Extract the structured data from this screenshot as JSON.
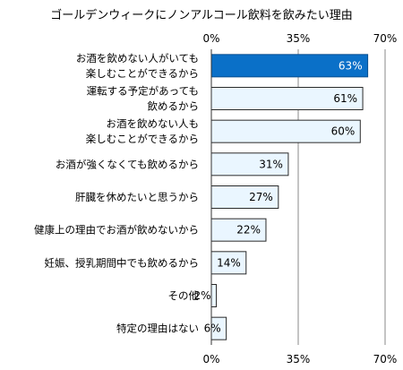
{
  "chart_data": {
    "type": "bar",
    "orientation": "horizontal",
    "title": "ゴールデンウィークにノンアルコール飲料を飲みたい理由",
    "categories": [
      [
        "お酒を飲めない人がいても",
        "楽しむことができるから"
      ],
      [
        "運転する予定があっても",
        "飲めるから"
      ],
      [
        "お酒を飲めない人も",
        "楽しむことができるから"
      ],
      [
        "お酒が強くなくても飲めるから"
      ],
      [
        "肝臓を休めたいと思うから"
      ],
      [
        "健康上の理由でお酒が飲めないから"
      ],
      [
        "妊娠、授乳期間中でも飲めるから"
      ],
      [
        "その他"
      ],
      [
        "特定の理由はない"
      ]
    ],
    "values": [
      63,
      61,
      60,
      31,
      27,
      22,
      14,
      2,
      6
    ],
    "value_labels": [
      "63%",
      "61%",
      "60%",
      "31%",
      "27%",
      "22%",
      "14%",
      "2%",
      "6%"
    ],
    "xlim": [
      0,
      70
    ],
    "ticks": [
      0,
      35,
      70
    ],
    "tick_labels": [
      "0%",
      "35%",
      "70%"
    ],
    "highlight_index": 0,
    "colors": {
      "highlight_fill": "#0a70c8",
      "highlight_stroke": "#0a4f8f",
      "bar_fill": "#eaf6ff",
      "bar_stroke": "#2a2a2a",
      "grid": "#888888",
      "highlight_label": "#ffffff"
    },
    "grid": true,
    "legend": "none"
  }
}
